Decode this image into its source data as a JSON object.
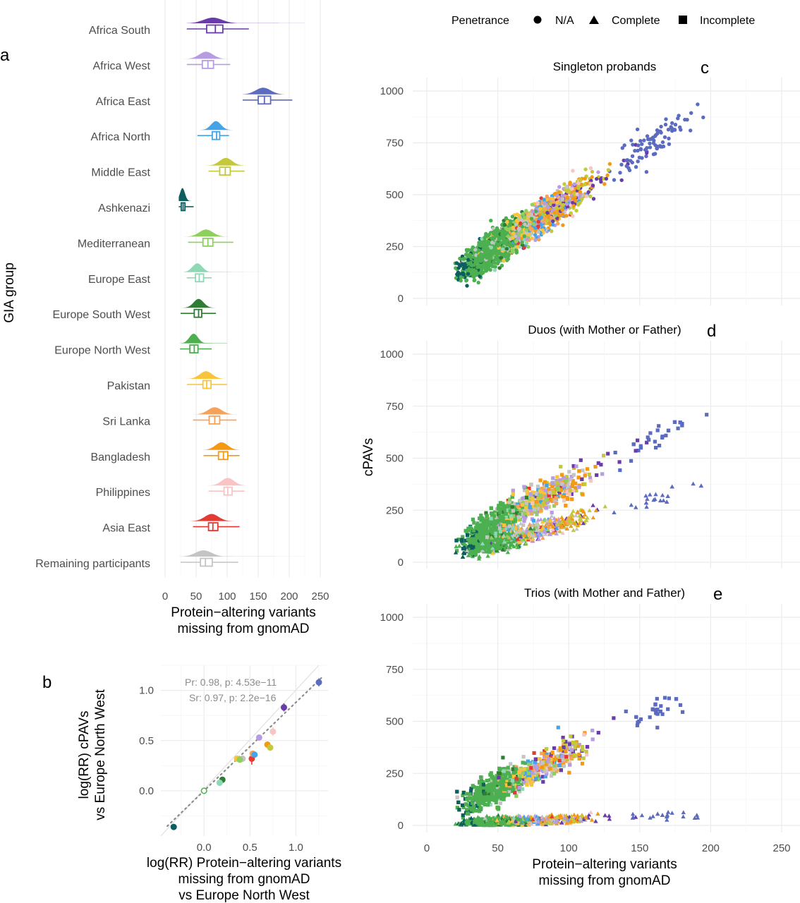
{
  "legend": {
    "title": "Penetrance",
    "items": [
      {
        "label": "N/A",
        "shape": "circle"
      },
      {
        "label": "Complete",
        "shape": "triangle"
      },
      {
        "label": "Incomplete",
        "shape": "square"
      }
    ]
  },
  "panel_labels": {
    "a": "a",
    "b": "b",
    "c": "c",
    "d": "d",
    "e": "e"
  },
  "group_colors": {
    "Africa South": "#6a3bab",
    "Africa West": "#b79ce0",
    "Africa East": "#5b6bc0",
    "Africa North": "#45a3e8",
    "Middle East": "#c3c93a",
    "Ashkenazi": "#0d5e5f",
    "Mediterranean": "#8fcf5e",
    "Europe East": "#8ed8b4",
    "Europe South West": "#2f7d32",
    "Europe North West": "#4caf50",
    "Pakistan": "#f7c43b",
    "Sri Lanka": "#f5a35b",
    "Bangladesh": "#f39a12",
    "Philippines": "#f8c4c4",
    "Asia East": "#e53935",
    "Remaining participants": "#c4c4c4"
  },
  "chart_data": [
    {
      "panel": "a",
      "type": "raincloud",
      "ylabel": "GIA group",
      "xlabel": "Protein−altering variants\nmissing from gnomAD",
      "xlim": [
        0,
        250
      ],
      "xticks": [
        "0",
        "50",
        "100",
        "150",
        "200",
        "250"
      ],
      "grid": true,
      "groups": [
        {
          "name": "Africa South",
          "range": [
            35,
            225
          ],
          "q1": 67,
          "median": 81,
          "q3": 93,
          "whisker": [
            35,
            135
          ],
          "peak": 77,
          "sd": 15,
          "tail": 40
        },
        {
          "name": "Africa West",
          "range": [
            27,
            125
          ],
          "q1": 60,
          "median": 69,
          "q3": 78,
          "whisker": [
            35,
            105
          ],
          "peak": 66,
          "sd": 11,
          "tail": 0
        },
        {
          "name": "Africa East",
          "range": [
            125,
            225
          ],
          "q1": 150,
          "median": 160,
          "q3": 170,
          "whisker": [
            125,
            205
          ],
          "peak": 158,
          "sd": 12,
          "tail": 0
        },
        {
          "name": "Africa North",
          "range": [
            48,
            110
          ],
          "q1": 76,
          "median": 83,
          "q3": 88,
          "whisker": [
            52,
            103
          ],
          "peak": 82,
          "sd": 8,
          "tail": 0
        },
        {
          "name": "Middle East",
          "range": [
            45,
            135
          ],
          "q1": 88,
          "median": 97,
          "q3": 105,
          "whisker": [
            70,
            128
          ],
          "peak": 98,
          "sd": 10,
          "tail": 0
        },
        {
          "name": "Ashkenazi",
          "range": [
            22,
            48
          ],
          "q1": 26,
          "median": 29,
          "q3": 32,
          "whisker": [
            22,
            46
          ],
          "peak": 28,
          "sd": 4,
          "tail": 0
        },
        {
          "name": "Mediterranean",
          "range": [
            30,
            110
          ],
          "q1": 61,
          "median": 69,
          "q3": 77,
          "whisker": [
            37,
            110
          ],
          "peak": 66,
          "sd": 11,
          "tail": 0
        },
        {
          "name": "Europe East",
          "range": [
            30,
            155
          ],
          "q1": 49,
          "median": 55,
          "q3": 62,
          "whisker": [
            35,
            75
          ],
          "peak": 52,
          "sd": 8,
          "tail": 30
        },
        {
          "name": "Europe South West",
          "range": [
            22,
            85
          ],
          "q1": 47,
          "median": 54,
          "q3": 59,
          "whisker": [
            25,
            82
          ],
          "peak": 54,
          "sd": 8,
          "tail": 0
        },
        {
          "name": "Europe North West",
          "range": [
            22,
            100
          ],
          "q1": 40,
          "median": 47,
          "q3": 53,
          "whisker": [
            24,
            75
          ],
          "peak": 46,
          "sd": 7,
          "tail": 20
        },
        {
          "name": "Pakistan",
          "range": [
            30,
            120
          ],
          "q1": 61,
          "median": 67,
          "q3": 74,
          "whisker": [
            35,
            100
          ],
          "peak": 66,
          "sd": 10,
          "tail": 0
        },
        {
          "name": "Sri Lanka",
          "range": [
            35,
            120
          ],
          "q1": 71,
          "median": 80,
          "q3": 88,
          "whisker": [
            45,
            115
          ],
          "peak": 80,
          "sd": 11,
          "tail": 0
        },
        {
          "name": "Bangladesh",
          "range": [
            45,
            125
          ],
          "q1": 86,
          "median": 94,
          "q3": 101,
          "whisker": [
            62,
            120
          ],
          "peak": 91,
          "sd": 10,
          "tail": 0
        },
        {
          "name": "Philippines",
          "range": [
            65,
            130
          ],
          "q1": 95,
          "median": 101,
          "q3": 108,
          "whisker": [
            70,
            128
          ],
          "peak": 101,
          "sd": 10,
          "tail": 0
        },
        {
          "name": "Asia East",
          "range": [
            40,
            130
          ],
          "q1": 70,
          "median": 77,
          "q3": 85,
          "whisker": [
            45,
            120
          ],
          "peak": 75,
          "sd": 11,
          "tail": 0
        },
        {
          "name": "Remaining participants",
          "range": [
            20,
            225
          ],
          "q1": 57,
          "median": 65,
          "q3": 76,
          "whisker": [
            25,
            118
          ],
          "peak": 62,
          "sd": 13,
          "tail": 40
        }
      ]
    },
    {
      "panel": "b",
      "type": "scatter",
      "xlabel": "log(RR) Protein−altering variants\nmissing from gnomAD\nvs Europe North West",
      "ylabel": "log(RR) cPAVs\nvs Europe North West",
      "xlim": [
        -0.47,
        1.35
      ],
      "ylim": [
        -0.45,
        1.25
      ],
      "xticks": [
        "0.0",
        "0.5",
        "1.0"
      ],
      "yticks": [
        "0.0",
        "0.5",
        "1.0"
      ],
      "annotations": [
        "Pr: 0.98, p: 4.53e−11",
        "Sr: 0.97, p: 2.2e−16"
      ],
      "identity_line": true,
      "regression": {
        "slope": 0.88,
        "intercept": 0.0
      },
      "points": [
        {
          "group": "Ashkenazi",
          "x": -0.33,
          "y": -0.36,
          "err": 0.03
        },
        {
          "group": "Europe North West",
          "x": 0.0,
          "y": 0.0,
          "err": 0.01,
          "hollow": true
        },
        {
          "group": "Europe South West",
          "x": 0.2,
          "y": 0.11,
          "err": 0.03
        },
        {
          "group": "Europe East",
          "x": 0.17,
          "y": 0.08,
          "err": 0.03
        },
        {
          "group": "Pakistan",
          "x": 0.36,
          "y": 0.32,
          "err": 0.02
        },
        {
          "group": "Remaining participants",
          "x": 0.42,
          "y": 0.32,
          "err": 0.02
        },
        {
          "group": "Mediterranean",
          "x": 0.39,
          "y": 0.31,
          "err": 0.03
        },
        {
          "group": "Asia East",
          "x": 0.52,
          "y": 0.32,
          "err": 0.06
        },
        {
          "group": "Sri Lanka",
          "x": 0.53,
          "y": 0.37,
          "err": 0.03
        },
        {
          "group": "Africa West",
          "x": 0.6,
          "y": 0.53,
          "err": 0.03
        },
        {
          "group": "Africa North",
          "x": 0.55,
          "y": 0.36,
          "err": 0.03
        },
        {
          "group": "Bangladesh",
          "x": 0.69,
          "y": 0.46,
          "err": 0.02
        },
        {
          "group": "Middle East",
          "x": 0.72,
          "y": 0.43,
          "err": 0.03
        },
        {
          "group": "Philippines",
          "x": 0.75,
          "y": 0.59,
          "err": 0.04
        },
        {
          "group": "Africa South",
          "x": 0.87,
          "y": 0.83,
          "err": 0.04
        },
        {
          "group": "Africa East",
          "x": 1.25,
          "y": 1.08,
          "err": 0.04
        }
      ]
    },
    {
      "panel": "c",
      "type": "scatter",
      "title": "Singleton probands",
      "ylabel": "cPAVs",
      "xlim": [
        -10,
        260
      ],
      "ylim": [
        -30,
        1050
      ],
      "yticks": [
        "0",
        "250",
        "500",
        "750",
        "1000"
      ]
    },
    {
      "panel": "d",
      "type": "scatter",
      "title": "Duos (with Mother or Father)",
      "ylabel": "cPAVs",
      "xlim": [
        -10,
        260
      ],
      "ylim": [
        -30,
        1050
      ],
      "yticks": [
        "0",
        "250",
        "500",
        "750",
        "1000"
      ]
    },
    {
      "panel": "e",
      "type": "scatter",
      "title": "Trios (with Mother and Father)",
      "xlabel": "Protein−altering variants\nmissing from gnomAD",
      "ylabel": "cPAVs",
      "xlim": [
        -10,
        260
      ],
      "ylim": [
        -30,
        1050
      ],
      "xticks": [
        "0",
        "50",
        "100",
        "150",
        "200",
        "250"
      ],
      "yticks": [
        "0",
        "250",
        "500",
        "750",
        "1000"
      ]
    }
  ]
}
